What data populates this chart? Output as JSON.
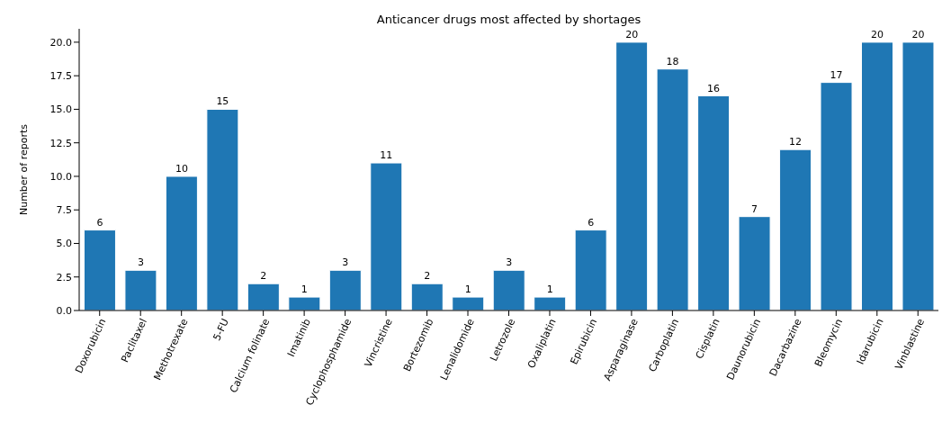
{
  "chart_data": {
    "type": "bar",
    "title": "Anticancer drugs most affected by shortages",
    "ylabel": "Number of reports",
    "categories": [
      "Doxorubicin",
      "Paclitaxel",
      "Methotrexate",
      "5-FU",
      "Calcium folinate",
      "Imatinib",
      "Cyclophosphamide",
      "Vincristine",
      "Bortezomib",
      "Lenalidomide",
      "Letrozole",
      "Oxaliplatin",
      "Epirubicin",
      "Asparaginase",
      "Carboplatin",
      "Cisplatin",
      "Daunorubicin",
      "Dacarbazine",
      "Bleomycin",
      "Idarubicin",
      "Vinblastine"
    ],
    "values": [
      6,
      3,
      10,
      15,
      2,
      1,
      3,
      11,
      2,
      1,
      3,
      1,
      6,
      20,
      18,
      16,
      7,
      12,
      17,
      20,
      20
    ],
    "color": "#1f77b4",
    "ylim": [
      0,
      21
    ],
    "yticks": [
      {
        "value": 0,
        "label": "0.0"
      },
      {
        "value": 2.5,
        "label": "2.5"
      },
      {
        "value": 5,
        "label": "5.0"
      },
      {
        "value": 7.5,
        "label": "7.5"
      },
      {
        "value": 10,
        "label": "10.0"
      },
      {
        "value": 12.5,
        "label": "12.5"
      },
      {
        "value": 15,
        "label": "15.0"
      },
      {
        "value": 17.5,
        "label": "17.5"
      },
      {
        "value": 20,
        "label": "20.0"
      }
    ],
    "data_labels": true,
    "grid": false
  }
}
